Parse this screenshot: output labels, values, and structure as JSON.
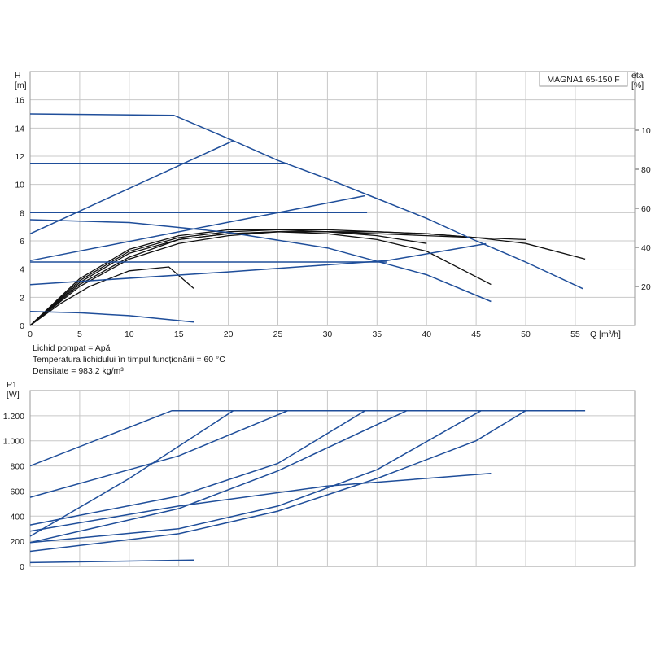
{
  "model_label": "MAGNA1 65-150 F",
  "notes": [
    "Lichid pompat = Apă",
    "Temperatura lichidului în timpul funcționării = 60 °C",
    "Densitate = 983.2 kg/m³"
  ],
  "colors": {
    "pump_curve": "#1f4e9a",
    "efficiency_curve": "#111111",
    "grid": "#c8c8c8"
  },
  "chart_data": [
    {
      "type": "line",
      "name_key": "head",
      "y_label_lines": [
        "H",
        "[m]"
      ],
      "y2_label_lines": [
        "eta",
        "[%]"
      ],
      "x_label": "Q [m³/h]",
      "xlim": [
        0,
        61
      ],
      "ylim": [
        0,
        18
      ],
      "y2lim": [
        0,
        130
      ],
      "grid": true,
      "x_ticks": [
        0,
        5,
        10,
        15,
        20,
        25,
        30,
        35,
        40,
        45,
        50,
        55
      ],
      "x_tick_labels": [
        "0",
        "5",
        "10",
        "15",
        "20",
        "25",
        "30",
        "35",
        "40",
        "45",
        "50",
        "55"
      ],
      "y_ticks": [
        0,
        2,
        4,
        6,
        8,
        10,
        12,
        14,
        16
      ],
      "y_tick_labels": [
        "0",
        "2",
        "4",
        "6",
        "8",
        "10",
        "12",
        "14",
        "16"
      ],
      "y2_ticks": [
        20,
        40,
        60,
        80,
        100
      ],
      "y2_tick_labels": [
        "20",
        "40",
        "60",
        "80",
        "100"
      ],
      "head_curves": [
        [
          [
            0,
            15.0
          ],
          [
            14.5,
            14.9
          ],
          [
            20.5,
            13.1
          ],
          [
            25,
            11.7
          ],
          [
            30,
            10.4
          ],
          [
            35,
            9.0
          ],
          [
            40,
            7.6
          ],
          [
            45,
            6.0
          ],
          [
            50,
            4.5
          ],
          [
            55.8,
            2.6
          ]
        ],
        [
          [
            0,
            6.5
          ],
          [
            20.5,
            13.1
          ]
        ],
        [
          [
            0,
            11.5
          ],
          [
            26,
            11.5
          ]
        ],
        [
          [
            0,
            8.0
          ],
          [
            34,
            8.0
          ]
        ],
        [
          [
            0,
            4.6
          ],
          [
            33.8,
            9.2
          ]
        ],
        [
          [
            0,
            7.5
          ],
          [
            10,
            7.3
          ],
          [
            20,
            6.6
          ],
          [
            30,
            5.5
          ],
          [
            40,
            3.6
          ],
          [
            46.5,
            1.7
          ]
        ],
        [
          [
            0,
            4.5
          ],
          [
            36,
            4.5
          ]
        ],
        [
          [
            0,
            2.9
          ],
          [
            20,
            3.8
          ],
          [
            36,
            4.6
          ],
          [
            46,
            5.8
          ]
        ],
        [
          [
            0,
            1.0
          ],
          [
            5,
            0.9
          ],
          [
            10,
            0.7
          ],
          [
            16.5,
            0.25
          ]
        ]
      ],
      "efficiency_curves": [
        [
          [
            0,
            0
          ],
          [
            3,
            11
          ],
          [
            6,
            20
          ],
          [
            10,
            28
          ],
          [
            14,
            30
          ],
          [
            16.5,
            19
          ]
        ],
        [
          [
            0,
            0
          ],
          [
            5,
            21
          ],
          [
            10,
            35
          ],
          [
            15,
            44
          ],
          [
            20,
            47
          ],
          [
            25,
            48
          ],
          [
            30,
            47
          ],
          [
            35,
            44
          ],
          [
            40,
            38
          ],
          [
            46.5,
            21
          ]
        ],
        [
          [
            0,
            0
          ],
          [
            5,
            20
          ],
          [
            10,
            34
          ],
          [
            15,
            42
          ],
          [
            20,
            46
          ],
          [
            25,
            48
          ],
          [
            30,
            48
          ],
          [
            35,
            48
          ],
          [
            40,
            47
          ],
          [
            45,
            45
          ],
          [
            50,
            42
          ],
          [
            56,
            34
          ]
        ],
        [
          [
            0,
            0
          ],
          [
            5,
            22
          ],
          [
            10,
            37
          ],
          [
            15,
            44
          ],
          [
            20,
            47
          ],
          [
            25,
            48
          ],
          [
            30,
            48
          ],
          [
            35,
            47
          ],
          [
            40,
            46
          ],
          [
            45,
            45
          ],
          [
            50,
            44
          ]
        ],
        [
          [
            0,
            0
          ],
          [
            5,
            23
          ],
          [
            10,
            38
          ],
          [
            15,
            45
          ],
          [
            20,
            48
          ],
          [
            25,
            49
          ],
          [
            30,
            49
          ],
          [
            35,
            48
          ],
          [
            40,
            47
          ],
          [
            45,
            45
          ]
        ],
        [
          [
            0,
            0
          ],
          [
            5,
            24
          ],
          [
            10,
            39
          ],
          [
            15,
            46
          ],
          [
            20,
            49
          ],
          [
            25,
            49
          ],
          [
            30,
            48
          ],
          [
            35,
            46
          ],
          [
            40,
            42
          ]
        ]
      ]
    },
    {
      "type": "line",
      "name_key": "power",
      "y_label_lines": [
        "P1",
        "[W]"
      ],
      "xlim": [
        0,
        61
      ],
      "ylim": [
        0,
        1400
      ],
      "grid": true,
      "y_ticks": [
        0,
        200,
        400,
        600,
        800,
        1000,
        1200
      ],
      "y_tick_labels": [
        "0",
        "200",
        "400",
        "600",
        "800",
        "1.000",
        "1.200"
      ],
      "power_curves": [
        [
          [
            0,
            800
          ],
          [
            14.3,
            1240
          ],
          [
            56,
            1240
          ]
        ],
        [
          [
            0,
            550
          ],
          [
            15,
            880
          ],
          [
            26,
            1240
          ]
        ],
        [
          [
            0,
            240
          ],
          [
            10,
            700
          ],
          [
            20.5,
            1240
          ]
        ],
        [
          [
            0,
            330
          ],
          [
            15,
            560
          ],
          [
            25,
            820
          ],
          [
            33.8,
            1240
          ]
        ],
        [
          [
            0,
            190
          ],
          [
            15,
            460
          ],
          [
            25,
            760
          ],
          [
            38,
            1240
          ]
        ],
        [
          [
            0,
            280
          ],
          [
            15,
            480
          ],
          [
            30,
            640
          ],
          [
            46.5,
            740
          ]
        ],
        [
          [
            0,
            190
          ],
          [
            15,
            300
          ],
          [
            25,
            480
          ],
          [
            35,
            770
          ],
          [
            45.5,
            1240
          ]
        ],
        [
          [
            0,
            120
          ],
          [
            15,
            260
          ],
          [
            25,
            440
          ],
          [
            35,
            700
          ],
          [
            45,
            1000
          ],
          [
            50,
            1240
          ]
        ],
        [
          [
            0,
            30
          ],
          [
            16.5,
            50
          ]
        ]
      ]
    }
  ]
}
